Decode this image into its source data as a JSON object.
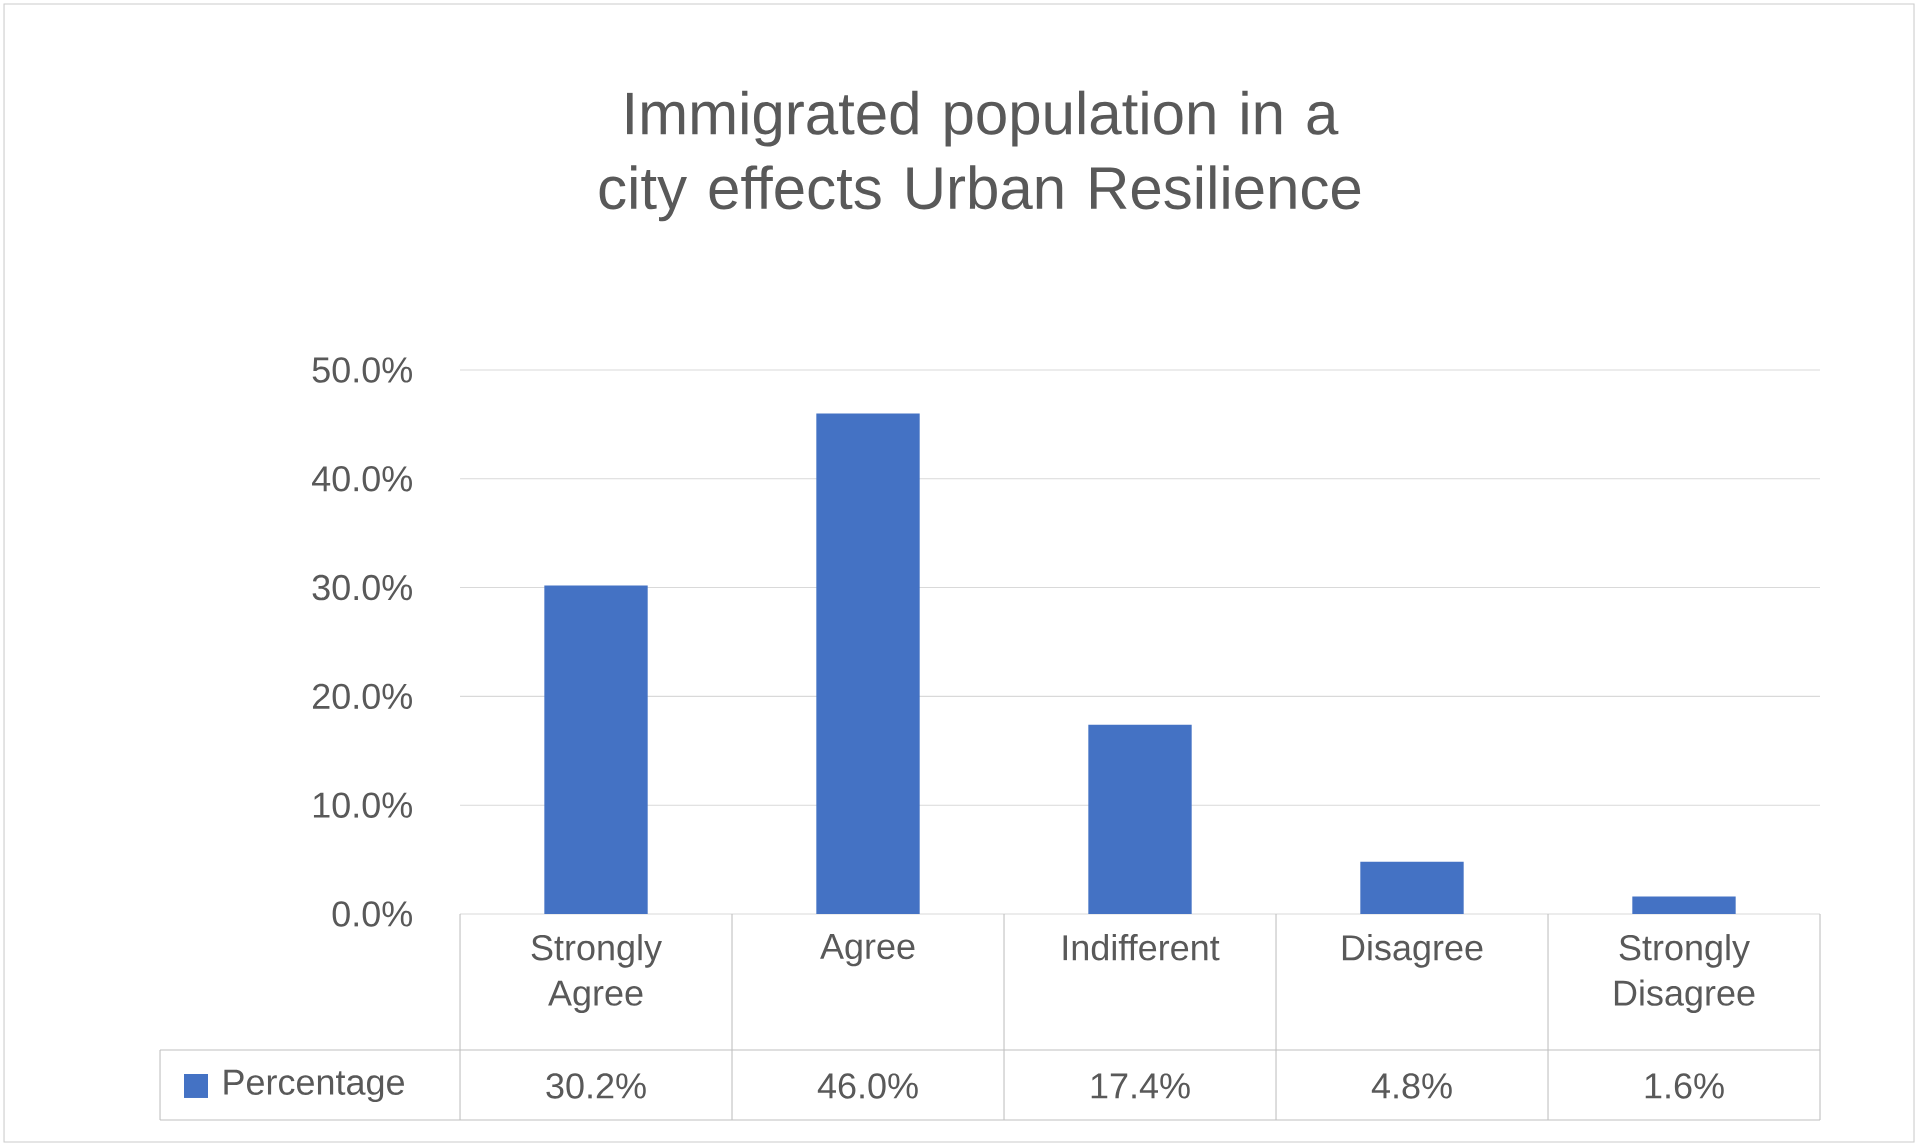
{
  "chart_data": {
    "type": "bar",
    "title": "Immigrated population in a city effects Urban Resilience",
    "categories": [
      "Strongly Agree",
      "Agree",
      "Indifferent",
      "Disagree",
      "Strongly Disagree"
    ],
    "series": [
      {
        "name": "Percentage",
        "color": "#4472c4",
        "values": [
          30.2,
          46.0,
          17.4,
          4.8,
          1.6
        ],
        "value_labels": [
          "30.2%",
          "46.0%",
          "17.4%",
          "4.8%",
          "1.6%"
        ]
      }
    ],
    "ylim": [
      0,
      50
    ],
    "yticks": [
      {
        "value": 0,
        "label": "0.0%"
      },
      {
        "value": 10,
        "label": "10.0%"
      },
      {
        "value": 20,
        "label": "20.0%"
      },
      {
        "value": 30,
        "label": "30.0%"
      },
      {
        "value": 40,
        "label": "40.0%"
      },
      {
        "value": 50,
        "label": "50.0%"
      }
    ],
    "grid": "y",
    "legend": "bottom"
  }
}
